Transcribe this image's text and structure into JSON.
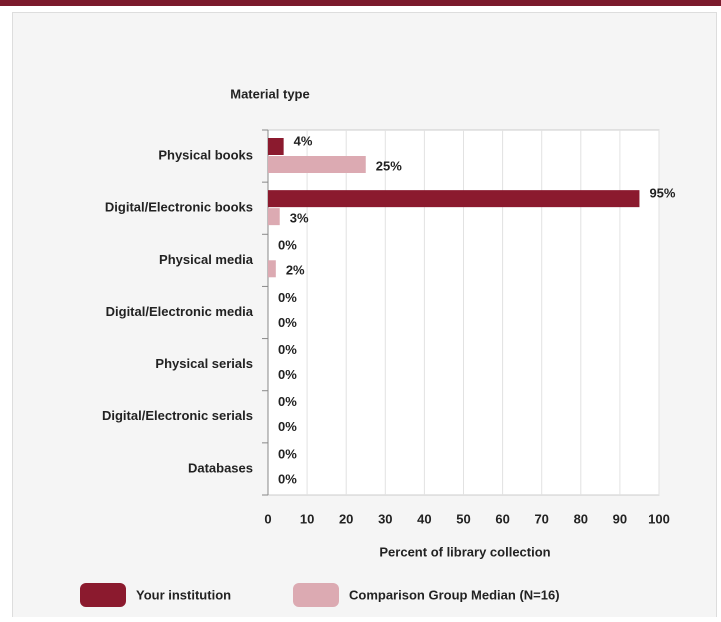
{
  "chart_data": {
    "type": "bar",
    "orientation": "horizontal",
    "y_label": "Material type",
    "x_label": "Percent of library collection",
    "categories": [
      "Physical books",
      "Digital/Electronic books",
      "Physical media",
      "Digital/Electronic media",
      "Physical serials",
      "Digital/Electronic serials",
      "Databases"
    ],
    "series": [
      {
        "name": "Your institution",
        "color": "#8b1a2e",
        "values": [
          4,
          95,
          0,
          0,
          0,
          0,
          0
        ],
        "value_labels": [
          "4%",
          "95%",
          "0%",
          "0%",
          "0%",
          "0%",
          "0%"
        ]
      },
      {
        "name": "Comparison Group Median (N=16)",
        "color": "#dcaab2",
        "values": [
          25,
          3,
          2,
          0,
          0,
          0,
          0
        ],
        "value_labels": [
          "25%",
          "3%",
          "2%",
          "0%",
          "0%",
          "0%",
          "0%"
        ]
      }
    ],
    "xlim": [
      0,
      100
    ],
    "xticks": [
      0,
      10,
      20,
      30,
      40,
      50,
      60,
      70,
      80,
      90,
      100
    ],
    "grid": true
  }
}
